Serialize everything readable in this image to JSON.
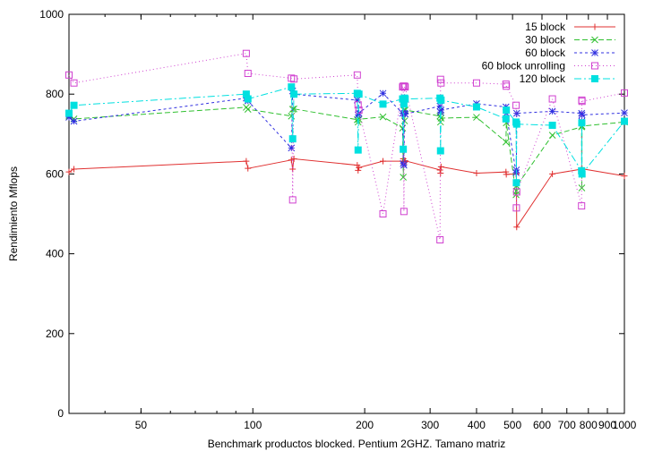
{
  "chart_data": {
    "type": "line",
    "title": "",
    "xlabel": "Benchmark productos blocked. Pentium 2GHZ. Tamano matriz",
    "ylabel": "Rendimiento Mflops",
    "x_scale": "log",
    "xlim": [
      32,
      1000
    ],
    "ylim": [
      0,
      1000
    ],
    "x_ticks": [
      50,
      100,
      200,
      300,
      400,
      500,
      600,
      700,
      800,
      900,
      1000
    ],
    "x_tick_labels": [
      "50",
      "100",
      "200",
      "300",
      "400",
      "500",
      "600",
      "700",
      "800",
      "900",
      "1000"
    ],
    "y_ticks": [
      0,
      200,
      400,
      600,
      800,
      1000
    ],
    "y_tick_labels": [
      "0",
      "200",
      "400",
      "600",
      "800",
      "1000"
    ],
    "grid": false,
    "legend_position": "top-right",
    "x": [
      32,
      33,
      96,
      97,
      127,
      128,
      129,
      191,
      192,
      193,
      224,
      253,
      254,
      255,
      256,
      257,
      319,
      320,
      321,
      400,
      480,
      481,
      511,
      512,
      513,
      640,
      767,
      768,
      769,
      1000
    ],
    "series": [
      {
        "name": "15 block",
        "color": "#e03030",
        "marker": "plus",
        "dash": "",
        "values": [
          605,
          612,
          632,
          614,
          635,
          612,
          638,
          622,
          609,
          616,
          632,
          632,
          638,
          625,
          630,
          633,
          610,
          602,
          618,
          602,
          605,
          599,
          600,
          600,
          467,
          600,
          612,
          610,
          613,
          595
        ]
      },
      {
        "name": "30 block",
        "color": "#30c030",
        "marker": "x",
        "dash": "6,3",
        "values": [
          745,
          738,
          767,
          762,
          745,
          762,
          763,
          736,
          730,
          737,
          743,
          715,
          592,
          760,
          733,
          760,
          745,
          730,
          740,
          742,
          680,
          728,
          548,
          557,
          570,
          697,
          718,
          565,
          720,
          730
        ]
      },
      {
        "name": "60 block",
        "color": "#3030e0",
        "marker": "star",
        "dash": "3,3",
        "values": [
          742,
          732,
          790,
          783,
          665,
          808,
          800,
          785,
          748,
          752,
          802,
          752,
          626,
          622,
          752,
          750,
          770,
          755,
          760,
          776,
          768,
          752,
          603,
          610,
          752,
          757,
          752,
          732,
          748,
          753
        ]
      },
      {
        "name": "60 block unrolling",
        "color": "#d040d0",
        "marker": "square",
        "dash": "1,3",
        "values": [
          848,
          828,
          902,
          852,
          840,
          535,
          838,
          848,
          773,
          760,
          500,
          818,
          820,
          506,
          820,
          818,
          435,
          837,
          828,
          828,
          825,
          820,
          772,
          515,
          555,
          788,
          520,
          785,
          782,
          803
        ]
      },
      {
        "name": "120 block",
        "color": "#00e0e0",
        "marker": "filled-square",
        "dash": "8,3,2,3",
        "values": [
          752,
          772,
          800,
          788,
          818,
          688,
          800,
          802,
          660,
          800,
          775,
          788,
          662,
          775,
          790,
          788,
          790,
          658,
          785,
          768,
          738,
          760,
          730,
          578,
          725,
          722,
          608,
          728,
          600,
          732
        ]
      }
    ]
  }
}
